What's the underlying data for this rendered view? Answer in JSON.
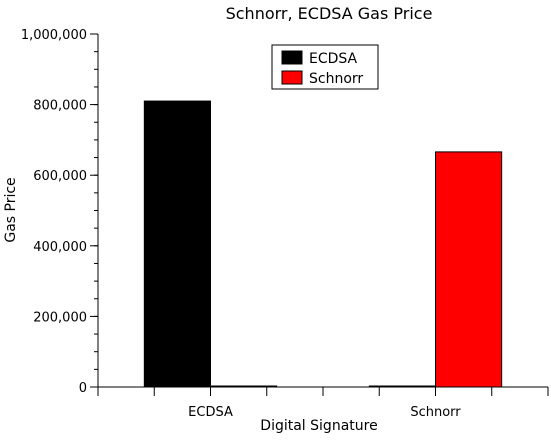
{
  "chart_data": {
    "type": "bar",
    "title": "Schnorr, ECDSA Gas Price",
    "xlabel": "Digital Signature",
    "ylabel": "Gas Price",
    "categories": [
      "ECDSA",
      "Schnorr"
    ],
    "series": [
      {
        "name": "ECDSA",
        "values": [
          810000,
          0
        ],
        "color": "#000000"
      },
      {
        "name": "Schnorr",
        "values": [
          0,
          666000
        ],
        "color": "#ff0000"
      }
    ],
    "ylim": [
      0,
      1000000
    ],
    "yticks": [
      0,
      200000,
      400000,
      600000,
      800000,
      1000000
    ],
    "ytick_labels": [
      "0",
      "200,000",
      "400,000",
      "600,000",
      "800,000",
      "1,000,000"
    ],
    "grid": false,
    "legend": {
      "placement": "top-center",
      "entries": [
        "ECDSA",
        "Schnorr"
      ]
    }
  }
}
